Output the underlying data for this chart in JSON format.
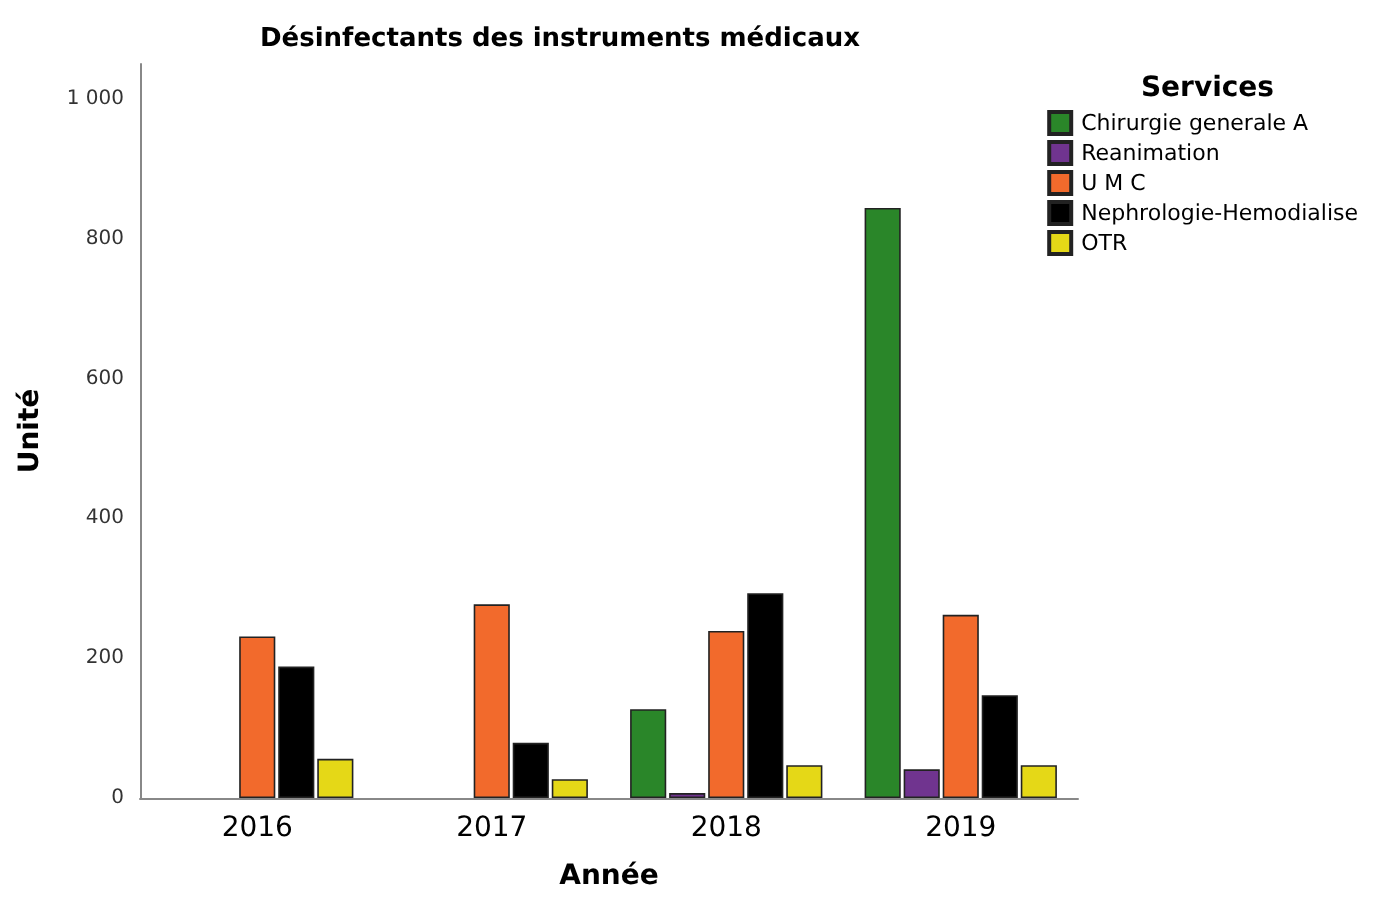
{
  "chart_data": {
    "type": "bar",
    "title": "Désinfectants des instruments médicaux",
    "xlabel": "Année",
    "ylabel": "Unité",
    "legend_title": "Services",
    "categories": [
      "2016",
      "2017",
      "2018",
      "2019"
    ],
    "series": [
      {
        "name": "Chirurgie generale A",
        "color": "#2a8629",
        "values": [
          null,
          null,
          127,
          844
        ]
      },
      {
        "name": "Reanimation",
        "color": "#70348f",
        "values": [
          null,
          null,
          7,
          41
        ]
      },
      {
        "name": "U M C",
        "color": "#f26a2c",
        "values": [
          231,
          277,
          239,
          262
        ]
      },
      {
        "name": "Nephrologie-Hemodialise",
        "color": "#000000",
        "values": [
          188,
          79,
          293,
          147
        ]
      },
      {
        "name": "OTR",
        "color": "#e5d817",
        "values": [
          56,
          27,
          47,
          47
        ]
      }
    ],
    "ylim": [
      0,
      1050
    ],
    "yticks": [
      0,
      200,
      400,
      600,
      800,
      {
        "value": 1000,
        "label": "1 000"
      }
    ],
    "grid": false,
    "legend": "top right"
  }
}
